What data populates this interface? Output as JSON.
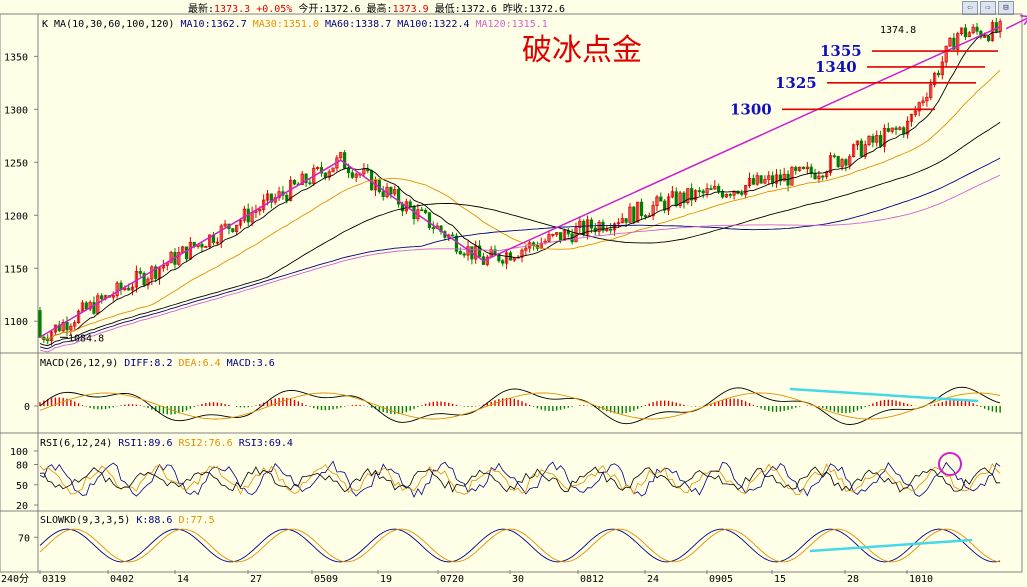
{
  "header": {
    "latest_label": "最新:",
    "latest": "1373.3",
    "change": "+0.05%",
    "open_label": "今开:",
    "open": "1372.6",
    "high_label": "最高:",
    "high": "1373.9",
    "low_label": "最低:",
    "low": "1372.6",
    "prev_label": "昨收:",
    "prev": "1372.6"
  },
  "chart_data": {
    "type": "candlestick",
    "title": "破冰点金",
    "price_panel": {
      "label": "K",
      "ma_params": "MA(10,30,60,100,120)",
      "ma_values": [
        {
          "name": "MA10",
          "value": "1362.7",
          "color": "#000000"
        },
        {
          "name": "MA30",
          "value": "1351.0",
          "color": "#e09000"
        },
        {
          "name": "MA60",
          "value": "1338.7",
          "color": "#000000"
        },
        {
          "name": "MA100",
          "value": "1322.4",
          "color": "#000080"
        },
        {
          "name": "MA120",
          "value": "1315.1",
          "color": "#d060d0"
        }
      ],
      "y_ticks": [
        "1350",
        "1300",
        "1250",
        "1200",
        "1150",
        "1100"
      ],
      "ylim": [
        1070,
        1390
      ],
      "annotations": {
        "high": "1374.8",
        "low": "1084.8"
      },
      "levels": [
        {
          "label": "1355",
          "value": 1355
        },
        {
          "label": "1340",
          "value": 1340
        },
        {
          "label": "1325",
          "value": 1325
        },
        {
          "label": "1300",
          "value": 1300
        }
      ],
      "trend_points": [
        {
          "x": "0319",
          "y": 1085
        },
        {
          "x": "0509",
          "y": 1252
        },
        {
          "x": "0720",
          "y": 1157
        },
        {
          "x": "1010",
          "y": 1378
        }
      ]
    },
    "macd_panel": {
      "label": "MACD(26,12,9)",
      "values": [
        {
          "name": "DIFF",
          "value": "8.2",
          "color": "#000000"
        },
        {
          "name": "DEA",
          "value": "6.4",
          "color": "#e09000"
        },
        {
          "name": "MACD",
          "value": "3.6",
          "color": "#000000"
        }
      ],
      "y_ticks": [
        "0"
      ]
    },
    "rsi_panel": {
      "label": "RSI(6,12,24)",
      "values": [
        {
          "name": "RSI1",
          "value": "89.6",
          "color": "#000000"
        },
        {
          "name": "RSI2",
          "value": "76.6",
          "color": "#e09000"
        },
        {
          "name": "RSI3",
          "value": "69.4",
          "color": "#000000"
        }
      ],
      "y_ticks": [
        "100",
        "80",
        "50",
        "20"
      ]
    },
    "kd_panel": {
      "label": "SLOWKD(9,3,3,5)",
      "values": [
        {
          "name": "K",
          "value": "88.6",
          "color": "#000000"
        },
        {
          "name": "D",
          "value": "77.5",
          "color": "#e09000"
        }
      ],
      "y_ticks": [
        "70"
      ]
    },
    "x_ticks": [
      "0319",
      "0402",
      "14",
      "27",
      "0509",
      "19",
      "0720",
      "30",
      "0812",
      "24",
      "0905",
      "15",
      "28",
      "1010"
    ],
    "timeframe": "240分"
  }
}
